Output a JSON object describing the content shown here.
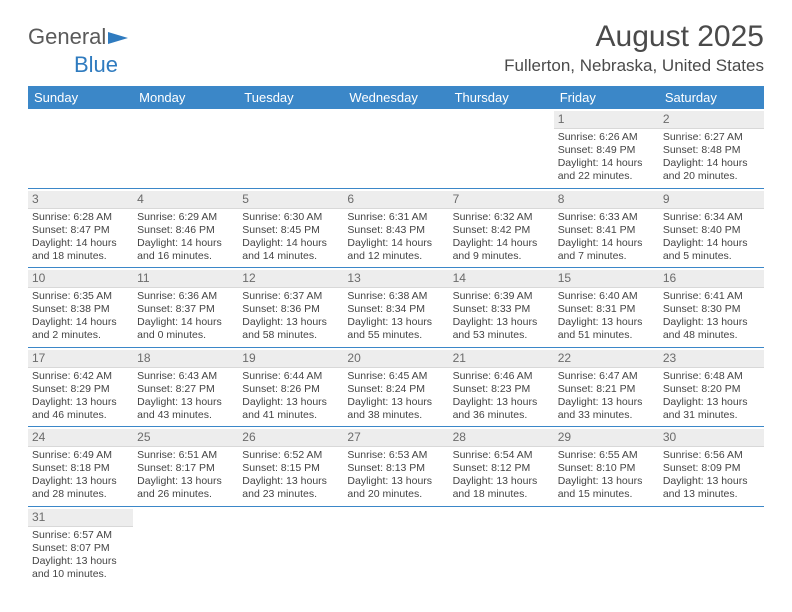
{
  "logo": {
    "text1": "General",
    "text2": "Blue"
  },
  "title": "August 2025",
  "location": "Fullerton, Nebraska, United States",
  "dow": [
    "Sunday",
    "Monday",
    "Tuesday",
    "Wednesday",
    "Thursday",
    "Friday",
    "Saturday"
  ],
  "colors": {
    "header_bg": "#3b87c8",
    "header_text": "#ffffff",
    "daynum_bg": "#ededed",
    "daynum_text": "#6b6b6b",
    "border": "#3b87c8",
    "body_text": "#444444"
  },
  "weeks": [
    [
      null,
      null,
      null,
      null,
      null,
      {
        "n": "1",
        "sr": "Sunrise: 6:26 AM",
        "ss": "Sunset: 8:49 PM",
        "d1": "Daylight: 14 hours",
        "d2": "and 22 minutes."
      },
      {
        "n": "2",
        "sr": "Sunrise: 6:27 AM",
        "ss": "Sunset: 8:48 PM",
        "d1": "Daylight: 14 hours",
        "d2": "and 20 minutes."
      }
    ],
    [
      {
        "n": "3",
        "sr": "Sunrise: 6:28 AM",
        "ss": "Sunset: 8:47 PM",
        "d1": "Daylight: 14 hours",
        "d2": "and 18 minutes."
      },
      {
        "n": "4",
        "sr": "Sunrise: 6:29 AM",
        "ss": "Sunset: 8:46 PM",
        "d1": "Daylight: 14 hours",
        "d2": "and 16 minutes."
      },
      {
        "n": "5",
        "sr": "Sunrise: 6:30 AM",
        "ss": "Sunset: 8:45 PM",
        "d1": "Daylight: 14 hours",
        "d2": "and 14 minutes."
      },
      {
        "n": "6",
        "sr": "Sunrise: 6:31 AM",
        "ss": "Sunset: 8:43 PM",
        "d1": "Daylight: 14 hours",
        "d2": "and 12 minutes."
      },
      {
        "n": "7",
        "sr": "Sunrise: 6:32 AM",
        "ss": "Sunset: 8:42 PM",
        "d1": "Daylight: 14 hours",
        "d2": "and 9 minutes."
      },
      {
        "n": "8",
        "sr": "Sunrise: 6:33 AM",
        "ss": "Sunset: 8:41 PM",
        "d1": "Daylight: 14 hours",
        "d2": "and 7 minutes."
      },
      {
        "n": "9",
        "sr": "Sunrise: 6:34 AM",
        "ss": "Sunset: 8:40 PM",
        "d1": "Daylight: 14 hours",
        "d2": "and 5 minutes."
      }
    ],
    [
      {
        "n": "10",
        "sr": "Sunrise: 6:35 AM",
        "ss": "Sunset: 8:38 PM",
        "d1": "Daylight: 14 hours",
        "d2": "and 2 minutes."
      },
      {
        "n": "11",
        "sr": "Sunrise: 6:36 AM",
        "ss": "Sunset: 8:37 PM",
        "d1": "Daylight: 14 hours",
        "d2": "and 0 minutes."
      },
      {
        "n": "12",
        "sr": "Sunrise: 6:37 AM",
        "ss": "Sunset: 8:36 PM",
        "d1": "Daylight: 13 hours",
        "d2": "and 58 minutes."
      },
      {
        "n": "13",
        "sr": "Sunrise: 6:38 AM",
        "ss": "Sunset: 8:34 PM",
        "d1": "Daylight: 13 hours",
        "d2": "and 55 minutes."
      },
      {
        "n": "14",
        "sr": "Sunrise: 6:39 AM",
        "ss": "Sunset: 8:33 PM",
        "d1": "Daylight: 13 hours",
        "d2": "and 53 minutes."
      },
      {
        "n": "15",
        "sr": "Sunrise: 6:40 AM",
        "ss": "Sunset: 8:31 PM",
        "d1": "Daylight: 13 hours",
        "d2": "and 51 minutes."
      },
      {
        "n": "16",
        "sr": "Sunrise: 6:41 AM",
        "ss": "Sunset: 8:30 PM",
        "d1": "Daylight: 13 hours",
        "d2": "and 48 minutes."
      }
    ],
    [
      {
        "n": "17",
        "sr": "Sunrise: 6:42 AM",
        "ss": "Sunset: 8:29 PM",
        "d1": "Daylight: 13 hours",
        "d2": "and 46 minutes."
      },
      {
        "n": "18",
        "sr": "Sunrise: 6:43 AM",
        "ss": "Sunset: 8:27 PM",
        "d1": "Daylight: 13 hours",
        "d2": "and 43 minutes."
      },
      {
        "n": "19",
        "sr": "Sunrise: 6:44 AM",
        "ss": "Sunset: 8:26 PM",
        "d1": "Daylight: 13 hours",
        "d2": "and 41 minutes."
      },
      {
        "n": "20",
        "sr": "Sunrise: 6:45 AM",
        "ss": "Sunset: 8:24 PM",
        "d1": "Daylight: 13 hours",
        "d2": "and 38 minutes."
      },
      {
        "n": "21",
        "sr": "Sunrise: 6:46 AM",
        "ss": "Sunset: 8:23 PM",
        "d1": "Daylight: 13 hours",
        "d2": "and 36 minutes."
      },
      {
        "n": "22",
        "sr": "Sunrise: 6:47 AM",
        "ss": "Sunset: 8:21 PM",
        "d1": "Daylight: 13 hours",
        "d2": "and 33 minutes."
      },
      {
        "n": "23",
        "sr": "Sunrise: 6:48 AM",
        "ss": "Sunset: 8:20 PM",
        "d1": "Daylight: 13 hours",
        "d2": "and 31 minutes."
      }
    ],
    [
      {
        "n": "24",
        "sr": "Sunrise: 6:49 AM",
        "ss": "Sunset: 8:18 PM",
        "d1": "Daylight: 13 hours",
        "d2": "and 28 minutes."
      },
      {
        "n": "25",
        "sr": "Sunrise: 6:51 AM",
        "ss": "Sunset: 8:17 PM",
        "d1": "Daylight: 13 hours",
        "d2": "and 26 minutes."
      },
      {
        "n": "26",
        "sr": "Sunrise: 6:52 AM",
        "ss": "Sunset: 8:15 PM",
        "d1": "Daylight: 13 hours",
        "d2": "and 23 minutes."
      },
      {
        "n": "27",
        "sr": "Sunrise: 6:53 AM",
        "ss": "Sunset: 8:13 PM",
        "d1": "Daylight: 13 hours",
        "d2": "and 20 minutes."
      },
      {
        "n": "28",
        "sr": "Sunrise: 6:54 AM",
        "ss": "Sunset: 8:12 PM",
        "d1": "Daylight: 13 hours",
        "d2": "and 18 minutes."
      },
      {
        "n": "29",
        "sr": "Sunrise: 6:55 AM",
        "ss": "Sunset: 8:10 PM",
        "d1": "Daylight: 13 hours",
        "d2": "and 15 minutes."
      },
      {
        "n": "30",
        "sr": "Sunrise: 6:56 AM",
        "ss": "Sunset: 8:09 PM",
        "d1": "Daylight: 13 hours",
        "d2": "and 13 minutes."
      }
    ],
    [
      {
        "n": "31",
        "sr": "Sunrise: 6:57 AM",
        "ss": "Sunset: 8:07 PM",
        "d1": "Daylight: 13 hours",
        "d2": "and 10 minutes."
      },
      null,
      null,
      null,
      null,
      null,
      null
    ]
  ]
}
